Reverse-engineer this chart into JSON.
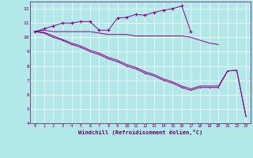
{
  "xlabel": "Windchill (Refroidissement éolien,°C)",
  "xlim": [
    -0.5,
    23.5
  ],
  "ylim": [
    4,
    12.5
  ],
  "yticks": [
    4,
    5,
    6,
    7,
    8,
    9,
    10,
    11,
    12
  ],
  "xticks": [
    0,
    1,
    2,
    3,
    4,
    5,
    6,
    7,
    8,
    9,
    10,
    11,
    12,
    13,
    14,
    15,
    16,
    17,
    18,
    19,
    20,
    21,
    22,
    23
  ],
  "bg_color": "#b2e8e8",
  "grid_color": "#c0dede",
  "line_color": "#880088",
  "series": {
    "temp_flat": {
      "x": [
        0,
        1,
        2,
        3,
        4,
        5,
        6,
        7,
        8,
        9,
        10,
        11,
        12,
        13,
        14,
        15,
        16,
        17,
        18,
        19,
        20
      ],
      "y": [
        10.4,
        10.5,
        10.4,
        10.4,
        10.4,
        10.4,
        10.4,
        10.3,
        10.2,
        10.2,
        10.2,
        10.1,
        10.1,
        10.1,
        10.1,
        10.1,
        10.1,
        10.0,
        9.8,
        9.6,
        9.5
      ]
    },
    "windchill_upper": {
      "x": [
        0,
        1,
        2,
        3,
        4,
        5,
        6,
        7,
        8,
        9,
        10,
        11,
        12,
        13,
        14,
        15,
        16,
        17
      ],
      "y": [
        10.4,
        10.6,
        10.8,
        11.0,
        11.0,
        11.1,
        11.1,
        10.5,
        10.5,
        11.35,
        11.4,
        11.6,
        11.55,
        11.75,
        11.9,
        12.0,
        12.2,
        10.4
      ]
    },
    "windchill_line1": {
      "x": [
        0,
        1,
        2,
        3,
        4,
        5,
        6,
        7,
        8,
        9,
        10,
        11,
        12,
        13,
        14,
        15,
        16,
        17,
        18,
        19,
        20,
        21,
        22,
        23
      ],
      "y": [
        10.4,
        10.3,
        10.0,
        9.8,
        9.5,
        9.3,
        9.0,
        8.8,
        8.5,
        8.3,
        8.0,
        7.8,
        7.5,
        7.3,
        7.0,
        6.8,
        6.5,
        6.3,
        6.5,
        6.5,
        6.5,
        7.65,
        7.7,
        4.5
      ]
    },
    "windchill_line2": {
      "x": [
        0,
        1,
        2,
        3,
        4,
        5,
        6,
        7,
        8,
        9,
        10,
        11,
        12,
        13,
        14,
        15,
        16,
        17,
        18,
        19,
        20,
        21,
        22,
        23
      ],
      "y": [
        10.4,
        10.35,
        10.1,
        9.85,
        9.6,
        9.4,
        9.1,
        8.9,
        8.6,
        8.4,
        8.1,
        7.9,
        7.6,
        7.4,
        7.1,
        6.9,
        6.6,
        6.4,
        6.6,
        6.6,
        6.6,
        7.65,
        7.7,
        4.5
      ]
    }
  }
}
